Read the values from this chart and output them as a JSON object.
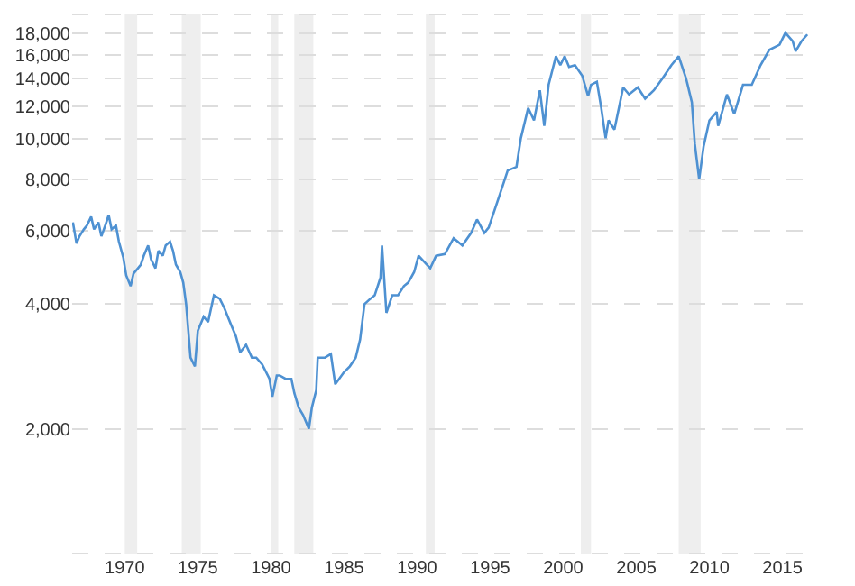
{
  "chart_data": {
    "type": "line",
    "log": true,
    "grid": "y",
    "marker": "none",
    "line_style": "solid",
    "x": [
      1966.45,
      1966.7,
      1966.9,
      1967.2,
      1967.4,
      1967.7,
      1967.9,
      1968.2,
      1968.4,
      1968.7,
      1968.9,
      1969.1,
      1969.4,
      1969.6,
      1969.9,
      1970.1,
      1970.4,
      1970.6,
      1970.9,
      1971.1,
      1971.3,
      1971.6,
      1971.8,
      1972.1,
      1972.3,
      1972.6,
      1972.8,
      1973.1,
      1973.3,
      1973.5,
      1973.8,
      1974.0,
      1974.2,
      1974.5,
      1974.8,
      1975.0,
      1975.4,
      1975.7,
      1976.1,
      1976.5,
      1976.8,
      1977.2,
      1977.6,
      1977.9,
      1978.3,
      1978.7,
      1979.0,
      1979.4,
      1979.9,
      1980.1,
      1980.4,
      1980.6,
      1981.0,
      1981.4,
      1981.6,
      1981.9,
      1982.2,
      1982.6,
      1982.8,
      1983.1,
      1983.2,
      1983.7,
      1984.1,
      1984.4,
      1985.0,
      1985.4,
      1985.8,
      1986.1,
      1986.4,
      1986.8,
      1987.1,
      1987.5,
      1987.6,
      1987.9,
      1988.3,
      1988.7,
      1989.1,
      1989.4,
      1989.8,
      1990.1,
      1990.9,
      1991.3,
      1991.9,
      1992.5,
      1993.1,
      1993.7,
      1994.1,
      1994.6,
      1994.9,
      1995.6,
      1996.2,
      1996.8,
      1997.1,
      1997.6,
      1998.0,
      1998.4,
      1998.7,
      1999.0,
      1999.5,
      1999.8,
      2000.1,
      2000.4,
      2000.8,
      2001.3,
      2001.7,
      2001.9,
      2002.3,
      2002.6,
      2002.9,
      2003.1,
      2003.5,
      2004.1,
      2004.5,
      2005.1,
      2005.6,
      2006.2,
      2006.8,
      2007.4,
      2007.9,
      2008.4,
      2008.8,
      2009.0,
      2009.3,
      2009.6,
      2010.0,
      2010.5,
      2010.6,
      2011.2,
      2011.7,
      2012.3,
      2012.9,
      2013.5,
      2014.1,
      2014.8,
      2015.2,
      2015.7,
      2015.9,
      2016.3,
      2016.7
    ],
    "series": [
      {
        "color": "#4e91d2",
        "values": [
          6300,
          5600,
          5830,
          6060,
          6180,
          6500,
          6060,
          6300,
          5830,
          6240,
          6560,
          6060,
          6180,
          5660,
          5180,
          4690,
          4420,
          4740,
          4880,
          4980,
          5230,
          5540,
          5130,
          4880,
          5380,
          5230,
          5540,
          5660,
          5380,
          4980,
          4780,
          4510,
          4000,
          2970,
          2830,
          3450,
          3730,
          3620,
          4200,
          4120,
          3920,
          3620,
          3350,
          3060,
          3190,
          2970,
          2970,
          2860,
          2640,
          2390,
          2690,
          2690,
          2640,
          2640,
          2440,
          2250,
          2160,
          2000,
          2250,
          2480,
          2970,
          2970,
          3030,
          2560,
          2740,
          2830,
          2970,
          3280,
          4000,
          4120,
          4200,
          4640,
          5540,
          3810,
          4200,
          4200,
          4420,
          4510,
          4780,
          5230,
          4880,
          5230,
          5280,
          5770,
          5540,
          5940,
          6400,
          5940,
          6120,
          7250,
          8400,
          8570,
          10050,
          11890,
          11100,
          13120,
          10770,
          13530,
          15850,
          15090,
          15850,
          14940,
          15090,
          14230,
          12700,
          13530,
          13760,
          11890,
          10050,
          11100,
          10550,
          13330,
          12820,
          13330,
          12520,
          13120,
          14030,
          15090,
          15850,
          14030,
          12270,
          9750,
          8000,
          9590,
          11100,
          11640,
          10770,
          12820,
          11500,
          13530,
          13530,
          15090,
          16430,
          16900,
          18060,
          17230,
          16300,
          17230,
          17890
        ]
      }
    ],
    "xlim": [
      1966.4,
      2017
    ],
    "xticks": [
      1970,
      1975,
      1980,
      1985,
      1990,
      1995,
      2000,
      2005,
      2010,
      2015
    ],
    "ylim": [
      1000,
      20000
    ],
    "yticks": [
      {
        "value": 1000,
        "label": null
      },
      {
        "value": 2000,
        "label": "2,000"
      },
      {
        "value": 4000,
        "label": "4,000"
      },
      {
        "value": 6000,
        "label": "6,000"
      },
      {
        "value": 8000,
        "label": "8,000"
      },
      {
        "value": 10000,
        "label": "10,000"
      },
      {
        "value": 12000,
        "label": "12,000"
      },
      {
        "value": 14000,
        "label": "14,000"
      },
      {
        "value": 16000,
        "label": "16,000"
      },
      {
        "value": 18000,
        "label": "18,000"
      },
      {
        "value": 20000,
        "label": null
      }
    ],
    "bands": [
      {
        "axis": "x",
        "from": 1970.0,
        "to": 1970.85,
        "color": "#eeeeee"
      },
      {
        "axis": "x",
        "from": 1973.9,
        "to": 1975.2,
        "color": "#eeeeee"
      },
      {
        "axis": "x",
        "from": 1980.0,
        "to": 1980.5,
        "color": "#eeeeee"
      },
      {
        "axis": "x",
        "from": 1981.6,
        "to": 1982.9,
        "color": "#eeeeee"
      },
      {
        "axis": "x",
        "from": 1990.6,
        "to": 1991.2,
        "color": "#eeeeee"
      },
      {
        "axis": "x",
        "from": 2001.2,
        "to": 2001.9,
        "color": "#eeeeee"
      },
      {
        "axis": "x",
        "from": 2007.9,
        "to": 2009.4,
        "color": "#eeeeee"
      }
    ]
  }
}
